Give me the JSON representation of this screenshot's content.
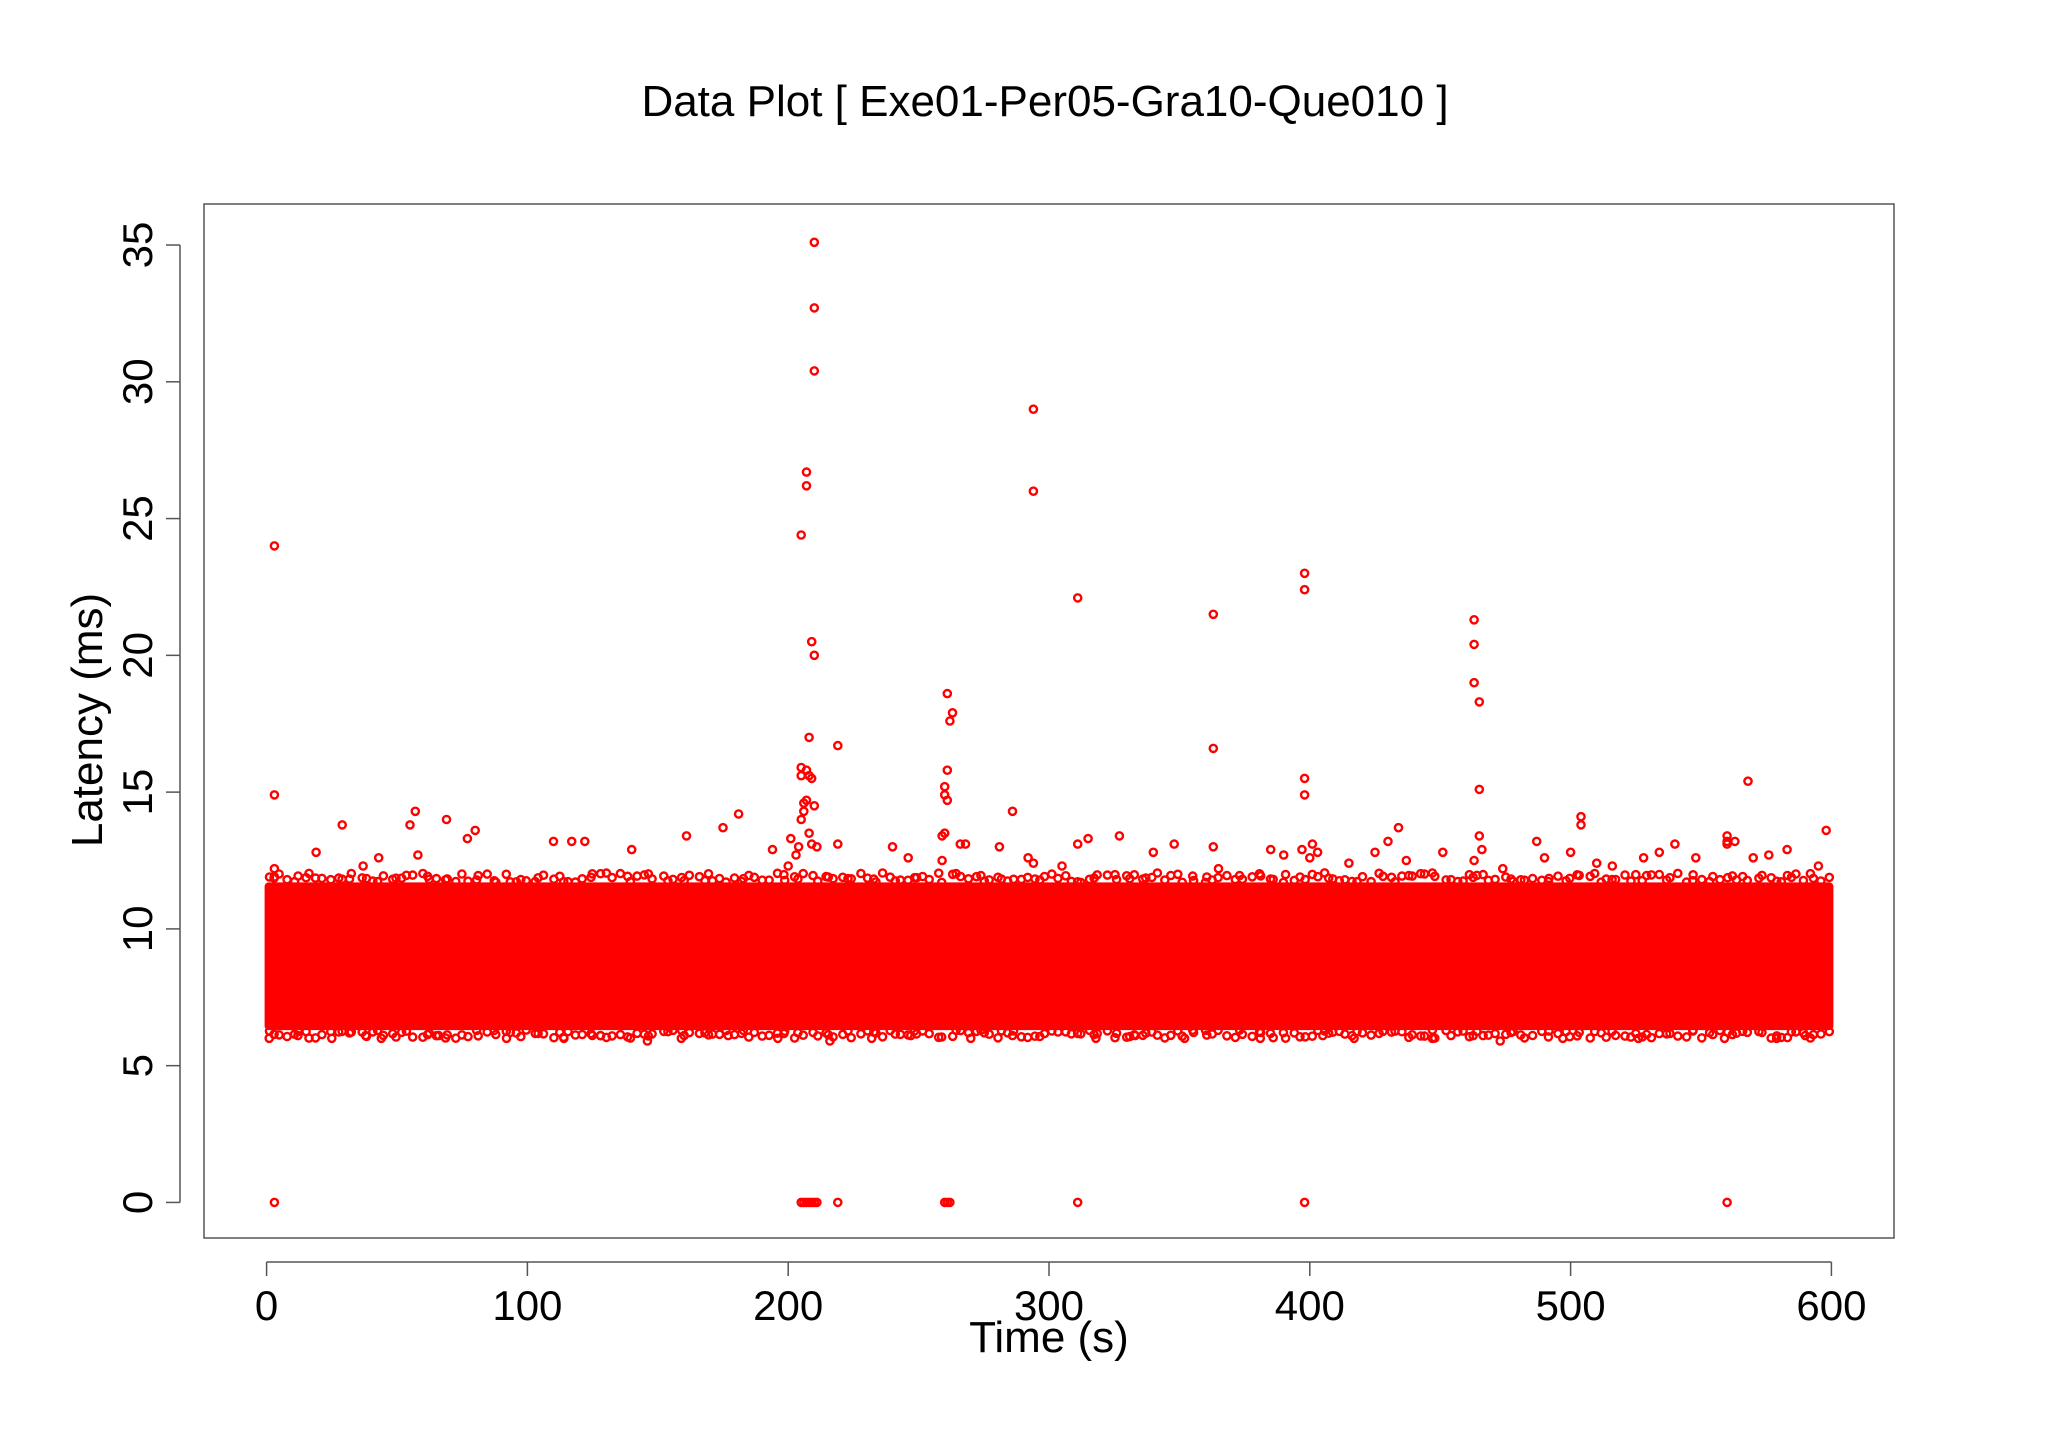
{
  "chart_data": {
    "type": "scatter",
    "title": "Data Plot [ Exe01-Per05-Gra10-Que010 ]",
    "xlabel": "Time (s)",
    "ylabel": "Latency (ms)",
    "xlim": [
      -24,
      624
    ],
    "ylim": [
      -1.3,
      36.5
    ],
    "xticks": [
      0,
      100,
      200,
      300,
      400,
      500,
      600
    ],
    "yticks": [
      0,
      5,
      10,
      15,
      20,
      25,
      30,
      35
    ],
    "xtick_labels": [
      "0",
      "100",
      "200",
      "300",
      "400",
      "500",
      "600"
    ],
    "ytick_labels": [
      "0",
      "5",
      "10",
      "15",
      "20",
      "25",
      "30",
      "35"
    ],
    "grid": false,
    "legend": "none",
    "marker": "open-circle",
    "color": "#ff0000",
    "dense_band": {
      "x_range": [
        0,
        600
      ],
      "y_range": [
        6.3,
        11.7
      ],
      "core_y_range": [
        7.2,
        10.8
      ]
    },
    "series": [
      {
        "points": [
          [
            3,
            24.0
          ],
          [
            3,
            14.9
          ],
          [
            3,
            12.2
          ],
          [
            3,
            11.9
          ],
          [
            3,
            0.0
          ],
          [
            19,
            12.8
          ],
          [
            29,
            13.8
          ],
          [
            37,
            12.3
          ],
          [
            43,
            12.6
          ],
          [
            55,
            13.8
          ],
          [
            57,
            14.3
          ],
          [
            58,
            12.7
          ],
          [
            69,
            14.0
          ],
          [
            77,
            13.3
          ],
          [
            80,
            13.6
          ],
          [
            110,
            13.2
          ],
          [
            117,
            13.2
          ],
          [
            122,
            13.2
          ],
          [
            140,
            12.9
          ],
          [
            161,
            13.4
          ],
          [
            175,
            13.7
          ],
          [
            181,
            14.2
          ],
          [
            194,
            12.9
          ],
          [
            200,
            12.3
          ],
          [
            201,
            13.3
          ],
          [
            203,
            12.7
          ],
          [
            204,
            13.0
          ],
          [
            205,
            24.4
          ],
          [
            205,
            15.9
          ],
          [
            205,
            15.6
          ],
          [
            205,
            14.0
          ],
          [
            205,
            0.0
          ],
          [
            206,
            14.6
          ],
          [
            206,
            14.3
          ],
          [
            206,
            0.0
          ],
          [
            207,
            26.7
          ],
          [
            207,
            26.2
          ],
          [
            207,
            15.8
          ],
          [
            207,
            14.7
          ],
          [
            207,
            0.0
          ],
          [
            208,
            17.0
          ],
          [
            208,
            15.6
          ],
          [
            208,
            13.5
          ],
          [
            208,
            0.0
          ],
          [
            209,
            20.5
          ],
          [
            209,
            15.5
          ],
          [
            209,
            13.1
          ],
          [
            209,
            0.0
          ],
          [
            210,
            35.1
          ],
          [
            210,
            32.7
          ],
          [
            210,
            30.4
          ],
          [
            210,
            20.0
          ],
          [
            210,
            14.5
          ],
          [
            210,
            0.0
          ],
          [
            211,
            13.0
          ],
          [
            211,
            0.0
          ],
          [
            219,
            16.7
          ],
          [
            219,
            13.1
          ],
          [
            219,
            0.0
          ],
          [
            240,
            13.0
          ],
          [
            246,
            12.6
          ],
          [
            259,
            13.4
          ],
          [
            259,
            12.5
          ],
          [
            260,
            15.2
          ],
          [
            260,
            14.9
          ],
          [
            260,
            13.5
          ],
          [
            260,
            0.0
          ],
          [
            261,
            18.6
          ],
          [
            261,
            15.8
          ],
          [
            261,
            14.7
          ],
          [
            261,
            0.0
          ],
          [
            262,
            17.6
          ],
          [
            262,
            0.0
          ],
          [
            263,
            17.9
          ],
          [
            266,
            13.1
          ],
          [
            268,
            13.1
          ],
          [
            281,
            13.0
          ],
          [
            286,
            14.3
          ],
          [
            292,
            12.6
          ],
          [
            294,
            29.0
          ],
          [
            294,
            26.0
          ],
          [
            294,
            12.4
          ],
          [
            305,
            12.3
          ],
          [
            311,
            22.1
          ],
          [
            311,
            13.1
          ],
          [
            311,
            0.0
          ],
          [
            315,
            13.3
          ],
          [
            327,
            13.4
          ],
          [
            340,
            12.8
          ],
          [
            348,
            13.1
          ],
          [
            363,
            21.5
          ],
          [
            363,
            16.6
          ],
          [
            363,
            13.0
          ],
          [
            365,
            12.2
          ],
          [
            385,
            12.9
          ],
          [
            390,
            12.7
          ],
          [
            397,
            12.9
          ],
          [
            398,
            23.0
          ],
          [
            398,
            22.4
          ],
          [
            398,
            15.5
          ],
          [
            398,
            14.9
          ],
          [
            398,
            0.0
          ],
          [
            400,
            12.6
          ],
          [
            401,
            13.1
          ],
          [
            403,
            12.8
          ],
          [
            415,
            12.4
          ],
          [
            425,
            12.8
          ],
          [
            430,
            13.2
          ],
          [
            434,
            13.7
          ],
          [
            437,
            12.5
          ],
          [
            451,
            12.8
          ],
          [
            463,
            21.3
          ],
          [
            463,
            20.4
          ],
          [
            463,
            19.0
          ],
          [
            463,
            12.5
          ],
          [
            465,
            18.3
          ],
          [
            465,
            15.1
          ],
          [
            465,
            13.4
          ],
          [
            466,
            12.9
          ],
          [
            474,
            12.2
          ],
          [
            487,
            13.2
          ],
          [
            490,
            12.6
          ],
          [
            500,
            12.8
          ],
          [
            504,
            14.1
          ],
          [
            504,
            13.8
          ],
          [
            510,
            12.4
          ],
          [
            516,
            12.3
          ],
          [
            528,
            12.6
          ],
          [
            534,
            12.8
          ],
          [
            540,
            13.1
          ],
          [
            548,
            12.6
          ],
          [
            560,
            13.4
          ],
          [
            560,
            13.2
          ],
          [
            560,
            13.1
          ],
          [
            560,
            0.0
          ],
          [
            563,
            13.2
          ],
          [
            568,
            15.4
          ],
          [
            570,
            12.6
          ],
          [
            576,
            12.7
          ],
          [
            583,
            12.9
          ],
          [
            595,
            12.3
          ],
          [
            598,
            13.6
          ],
          [
            1,
            6.0
          ],
          [
            12,
            6.1
          ],
          [
            25,
            6.0
          ],
          [
            38,
            6.1
          ],
          [
            44,
            6.0
          ],
          [
            66,
            6.1
          ],
          [
            92,
            6.0
          ],
          [
            114,
            6.0
          ],
          [
            128,
            6.1
          ],
          [
            146,
            5.9
          ],
          [
            159,
            6.0
          ],
          [
            177,
            6.1
          ],
          [
            196,
            6.0
          ],
          [
            216,
            5.9
          ],
          [
            232,
            6.0
          ],
          [
            247,
            6.1
          ],
          [
            270,
            6.0
          ],
          [
            286,
            6.1
          ],
          [
            318,
            6.0
          ],
          [
            333,
            6.1
          ],
          [
            352,
            6.0
          ],
          [
            381,
            6.0
          ],
          [
            405,
            6.1
          ],
          [
            417,
            6.0
          ],
          [
            447,
            6.0
          ],
          [
            473,
            5.9
          ],
          [
            497,
            6.0
          ],
          [
            526,
            6.0
          ],
          [
            559,
            6.0
          ],
          [
            579,
            6.0
          ],
          [
            590,
            6.1
          ]
        ]
      }
    ]
  }
}
